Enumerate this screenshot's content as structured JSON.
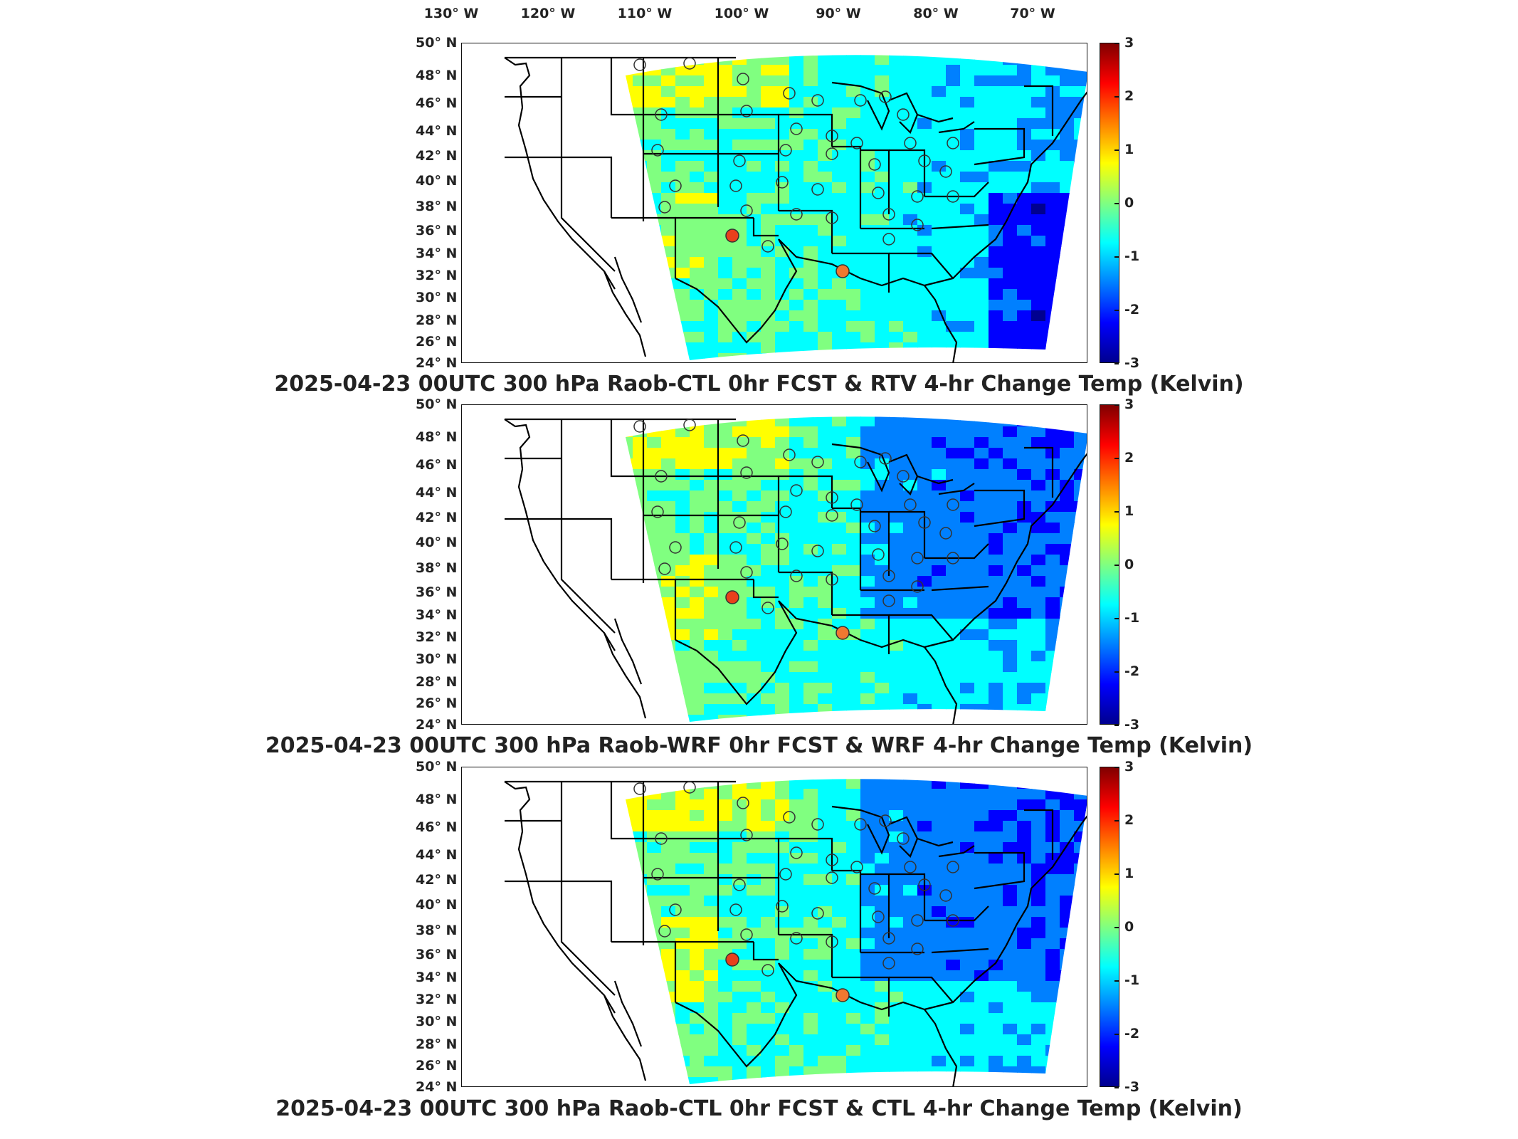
{
  "figure": {
    "lon_labels": [
      "130° W",
      "120° W",
      "110° W",
      "100° W",
      "90° W",
      "80° W",
      "70° W"
    ],
    "lat_labels": [
      "50° N",
      "48° N",
      "46° N",
      "44° N",
      "42° N",
      "40° N",
      "38° N",
      "36° N",
      "34° N",
      "32° N",
      "30° N",
      "28° N",
      "26° N",
      "24° N"
    ],
    "colorbar": {
      "ticks": [
        "3",
        "2",
        "1",
        "0",
        "-1",
        "-2",
        "-3"
      ],
      "range": [
        -3,
        3
      ],
      "colormap": "jet",
      "colors": [
        "#00008f",
        "#0000ff",
        "#0080ff",
        "#00ffff",
        "#80ff80",
        "#ffff00",
        "#ff8000",
        "#ff0000",
        "#800000"
      ]
    }
  },
  "panels": [
    {
      "title": "2025-04-23 00UTC 300 hPa Raob-CTL 0hr FCST & RTV 4-hr Change Temp (Kelvin)",
      "red_stations": [
        "36N 102W",
        "33N 89W (small)"
      ],
      "background_tone": "green-cyan with warm northern plains and cool Atlantic"
    },
    {
      "title": "2025-04-23 00UTC 300 hPa Raob-WRF 0hr FCST & WRF 4-hr Change Temp (Kelvin)",
      "red_stations": [
        "36N 102W",
        "33N 89W"
      ],
      "background_tone": "warmer west, blue eastern states"
    },
    {
      "title": "2025-04-23 00UTC 300 hPa Raob-CTL 0hr FCST & CTL 4-hr Change Temp (Kelvin)",
      "red_stations": [
        "36N 102W",
        "33N 89W"
      ],
      "background_tone": "similar to WRF panel"
    }
  ]
}
